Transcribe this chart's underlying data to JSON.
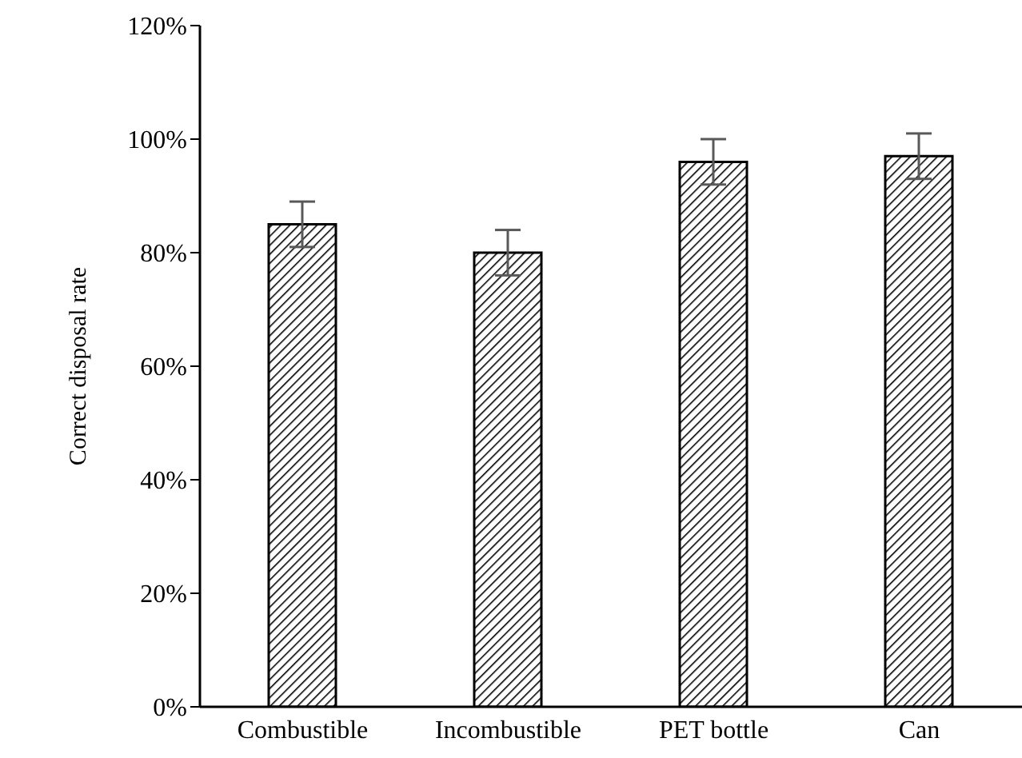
{
  "chart_data": {
    "type": "bar",
    "ylabel": "Correct disposal rate",
    "categories": [
      "Combustible",
      "Incombustible",
      "PET bottle",
      "Can"
    ],
    "values": [
      85,
      80,
      96,
      97
    ],
    "errors": [
      4,
      4,
      4,
      4
    ],
    "color": "#000000",
    "ylim": [
      0,
      120
    ],
    "yticks": [
      {
        "value": 0,
        "label": "0%"
      },
      {
        "value": 20,
        "label": "20%"
      },
      {
        "value": 40,
        "label": "40%"
      },
      {
        "value": 60,
        "label": "60%"
      },
      {
        "value": 80,
        "label": "80%"
      },
      {
        "value": 100,
        "label": "100%"
      },
      {
        "value": 120,
        "label": "120%"
      }
    ],
    "grid": false,
    "legend": false
  }
}
